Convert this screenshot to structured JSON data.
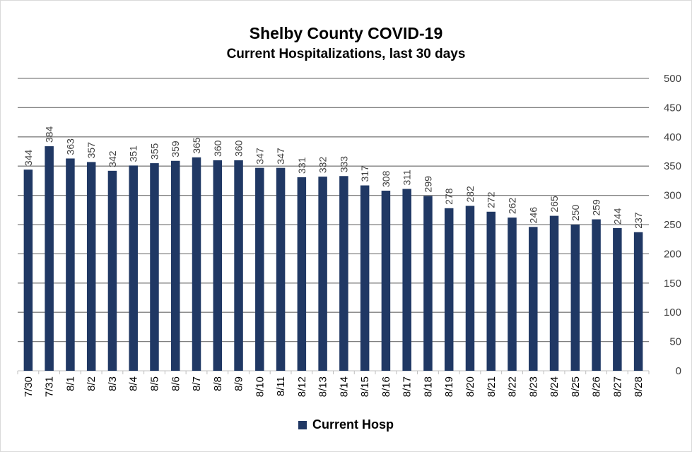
{
  "chart_data": {
    "type": "bar",
    "title": "Shelby County COVID-19",
    "subtitle": "Current Hospitalizations, last 30 days",
    "categories": [
      "7/30",
      "7/31",
      "8/1",
      "8/2",
      "8/3",
      "8/4",
      "8/5",
      "8/6",
      "8/7",
      "8/8",
      "8/9",
      "8/10",
      "8/11",
      "8/12",
      "8/13",
      "8/14",
      "8/15",
      "8/16",
      "8/17",
      "8/18",
      "8/19",
      "8/20",
      "8/21",
      "8/22",
      "8/23",
      "8/24",
      "8/25",
      "8/26",
      "8/27",
      "8/28"
    ],
    "series": [
      {
        "name": "Current Hosp",
        "values": [
          344,
          384,
          363,
          357,
          342,
          351,
          355,
          359,
          365,
          360,
          360,
          347,
          347,
          331,
          332,
          333,
          317,
          308,
          311,
          299,
          278,
          282,
          272,
          262,
          246,
          265,
          250,
          259,
          244,
          237
        ]
      }
    ],
    "ylim": [
      0,
      500
    ],
    "yticks": [
      0,
      50,
      100,
      150,
      200,
      250,
      300,
      350,
      400,
      450,
      500
    ],
    "y_axis_side": "right",
    "grid": true,
    "data_labels": true,
    "legend_position": "bottom",
    "colors": {
      "bar": "#203864",
      "grid": "#808080",
      "axis_text": "#404040"
    }
  }
}
